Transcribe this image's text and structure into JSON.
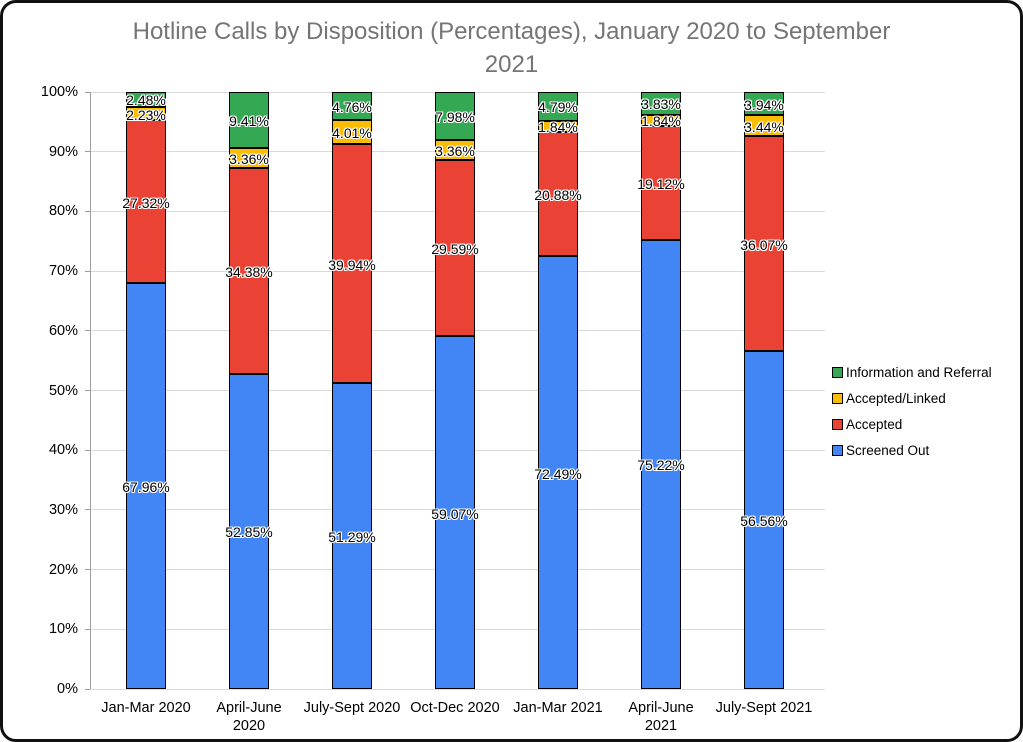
{
  "title": "Hotline Calls by Disposition (Percentages), January 2020 to September 2021",
  "chart_data": {
    "type": "bar",
    "stacked": true,
    "title": "Hotline Calls by Disposition (Percentages), January 2020 to September 2021",
    "categories": [
      "Jan-Mar 2020",
      "April-June\n2020",
      "July-Sept 2020",
      "Oct-Dec 2020",
      "Jan-Mar 2021",
      "April-June\n2021",
      "July-Sept 2021"
    ],
    "series": [
      {
        "name": "Screened Out",
        "color": "#4285F4",
        "values": [
          67.96,
          52.85,
          51.29,
          59.07,
          72.49,
          75.22,
          56.56
        ]
      },
      {
        "name": "Accepted",
        "color": "#EA4335",
        "values": [
          27.32,
          34.38,
          39.94,
          29.59,
          20.88,
          19.12,
          36.07
        ]
      },
      {
        "name": "Accepted/Linked",
        "color": "#FBBC04",
        "values": [
          2.23,
          3.36,
          4.01,
          3.36,
          1.84,
          1.84,
          3.44
        ]
      },
      {
        "name": "Information and Referral",
        "color": "#34A853",
        "values": [
          2.48,
          9.41,
          4.76,
          7.98,
          4.79,
          3.83,
          3.94
        ]
      }
    ],
    "data_label_format": "percent_two_decimals",
    "y_ticks": [
      "0%",
      "10%",
      "20%",
      "30%",
      "40%",
      "50%",
      "60%",
      "70%",
      "80%",
      "90%",
      "100%"
    ],
    "ylim": [
      0,
      100
    ],
    "grid": true,
    "legend_position": "right",
    "legend_order": [
      "Information and Referral",
      "Accepted/Linked",
      "Accepted",
      "Screened Out"
    ],
    "colors": {
      "screened_out": "#4285F4",
      "accepted": "#EA4335",
      "accepted_linked": "#FBBC04",
      "information_and_referral": "#34A853",
      "gridline": "#d9d9d9",
      "axis": "#9e9e9e",
      "title_text": "#757575",
      "label_text": "#000000"
    }
  }
}
